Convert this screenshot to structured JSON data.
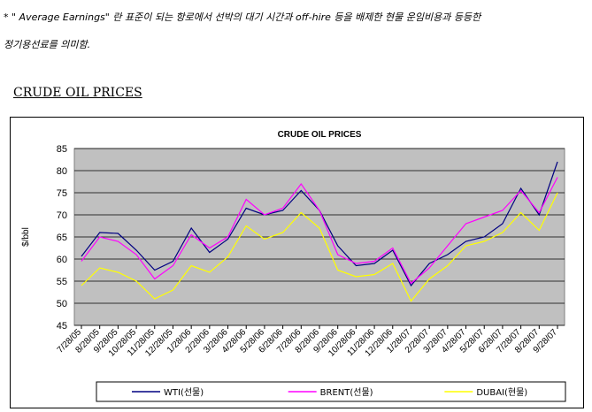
{
  "notes": [
    "* \" Average Earnings\" 란 표준이 되는 항로에서 선박의 대기 시간과 off-hire 등을 배제한 현물 운임비용과 등등한",
    "정기용선료를 의미함."
  ],
  "section_title": "CRUDE OIL PRICES",
  "chart_data": {
    "type": "line",
    "title": "CRUDE OIL PRICES",
    "xlabel": "",
    "ylabel": "$/bbl",
    "ylim": [
      45,
      85
    ],
    "yticks": [
      45,
      50,
      55,
      60,
      65,
      70,
      75,
      80,
      85
    ],
    "grid": true,
    "legend_position": "bottom",
    "background": "#c0c0c0",
    "categories": [
      "7/28/05",
      "8/28/05",
      "9/28/05",
      "10/28/05",
      "11/28/05",
      "12/28/05",
      "1/28/06",
      "2/28/06",
      "3/28/06",
      "4/28/06",
      "5/28/06",
      "6/28/06",
      "7/28/06",
      "8/28/06",
      "9/28/06",
      "10/28/06",
      "11/28/06",
      "12/28/06",
      "1/28/07",
      "2/28/07",
      "3/28/07",
      "4/28/07",
      "5/28/07",
      "6/28/07",
      "7/28/07",
      "8/28/07",
      "9/28/07"
    ],
    "series": [
      {
        "name": "WTI(선물)",
        "color": "#000080",
        "values": [
          60.6,
          66.0,
          65.8,
          62.0,
          57.5,
          59.5,
          67.0,
          61.5,
          64.5,
          71.5,
          70.0,
          71.0,
          75.5,
          71.0,
          63.0,
          58.5,
          59.0,
          62.0,
          54.0,
          59.0,
          61.0,
          64.0,
          65.0,
          68.0,
          76.0,
          70.0,
          82.0
        ]
      },
      {
        "name": "BRENT(선물)",
        "color": "#ff00ff",
        "values": [
          59.5,
          65.0,
          64.0,
          61.0,
          55.5,
          58.5,
          65.5,
          62.5,
          65.0,
          73.5,
          70.0,
          71.5,
          77.0,
          71.0,
          61.0,
          59.0,
          59.5,
          62.5,
          54.5,
          58.0,
          63.0,
          68.0,
          69.5,
          71.0,
          75.5,
          70.5,
          78.5
        ]
      },
      {
        "name": "DUBAI(현물)",
        "color": "#ffff00",
        "values": [
          54.0,
          58.0,
          57.0,
          55.0,
          51.0,
          53.0,
          58.5,
          57.0,
          60.5,
          67.5,
          64.5,
          66.0,
          70.5,
          67.0,
          57.5,
          56.0,
          56.5,
          59.0,
          50.5,
          55.5,
          58.5,
          63.0,
          64.0,
          66.0,
          70.5,
          66.5,
          75.0
        ]
      }
    ]
  }
}
